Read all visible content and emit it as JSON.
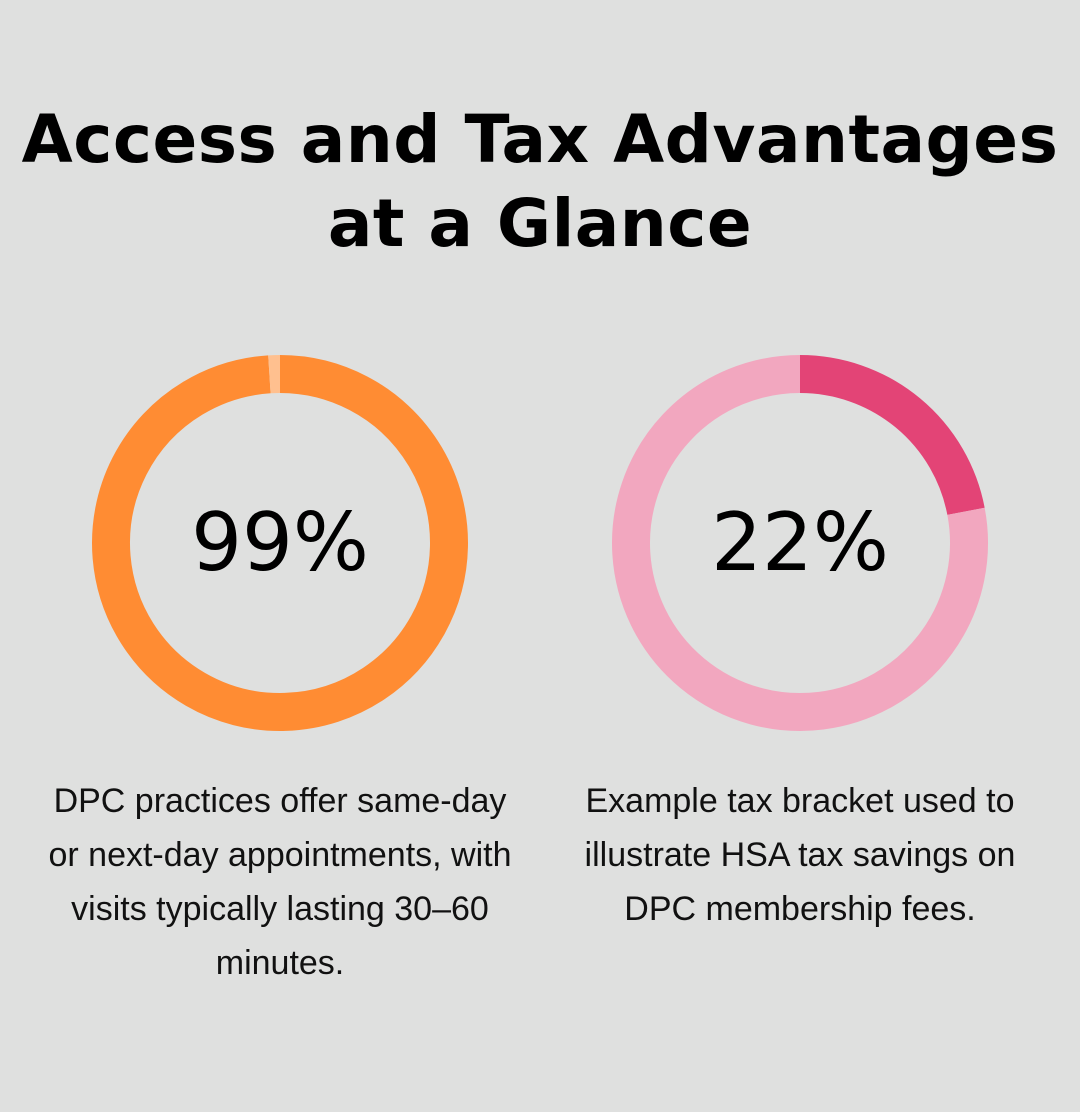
{
  "title": "Access and Tax Advantages at a Glance",
  "chart_data": [
    {
      "type": "pie",
      "variant": "donut",
      "value": 99,
      "label": "99%",
      "segments": [
        {
          "value": 99,
          "color": "#ff8c33"
        },
        {
          "value": 1,
          "color": "#ffc08f"
        }
      ],
      "description": "DPC practices offer same-day or next-day appointments, with visits typically lasting 30–60 minutes."
    },
    {
      "type": "pie",
      "variant": "donut",
      "value": 22,
      "label": "22%",
      "segments": [
        {
          "value": 22,
          "color": "#e34476"
        },
        {
          "value": 78,
          "color": "#f2a7bf"
        }
      ],
      "description": "Example tax bracket used to illustrate HSA tax savings on DPC membership fees."
    }
  ]
}
